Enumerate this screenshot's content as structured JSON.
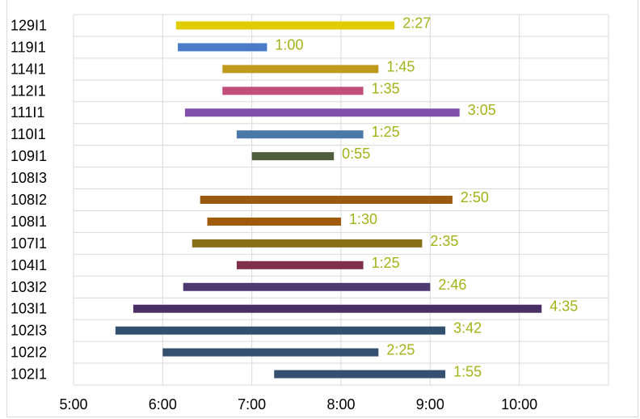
{
  "chart_data": {
    "type": "bar",
    "orientation": "horizontal",
    "title": "",
    "categories": [
      "129I1",
      "119I1",
      "114I1",
      "112I1",
      "111I1",
      "110I1",
      "109I1",
      "108I3",
      "108I2",
      "108I1",
      "107I1",
      "104I1",
      "103I2",
      "103I1",
      "102I3",
      "102I2",
      "102I1"
    ],
    "series": [
      {
        "start": [
          6.15,
          6.17,
          6.67,
          6.67,
          6.25,
          6.83,
          7.0,
          null,
          6.42,
          6.5,
          6.33,
          6.83,
          6.23,
          5.67,
          5.47,
          6.0,
          7.25
        ],
        "duration_hours": [
          2.45,
          1.0,
          1.75,
          1.58,
          3.08,
          1.42,
          0.92,
          null,
          2.83,
          1.5,
          2.58,
          1.42,
          2.77,
          4.58,
          3.7,
          2.42,
          1.92
        ],
        "labels": [
          "2:27",
          "1:00",
          "1:45",
          "1:35",
          "3:05",
          "1:25",
          "0:55",
          "",
          "2:50",
          "1:30",
          "2:35",
          "1:25",
          "2:46",
          "4:35",
          "3:42",
          "2:25",
          "1:55"
        ],
        "colors": [
          "#e0cc00",
          "#4a7bc8",
          "#c09a1c",
          "#c0507a",
          "#7e4eaa",
          "#4a78a8",
          "#4f5e3a",
          "#ffffff",
          "#9a5a12",
          "#a05a0c",
          "#857018",
          "#80304a",
          "#4e3a70",
          "#4a2e66",
          "#30506e",
          "#34506e",
          "#34506e"
        ]
      }
    ],
    "x_ticks": [
      "5:00",
      "6:00",
      "7:00",
      "8:00",
      "9:00",
      "10:00"
    ],
    "xlim": [
      5.0,
      11.0
    ],
    "label_color": "#a0b418",
    "title_color": "#70ad47",
    "grid": true
  }
}
